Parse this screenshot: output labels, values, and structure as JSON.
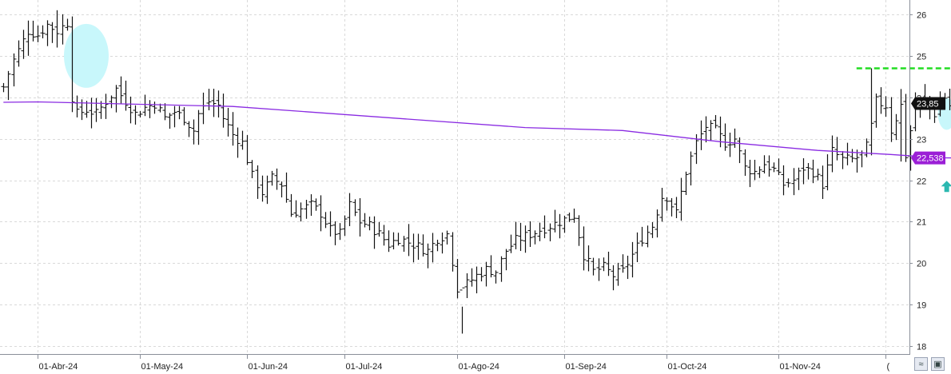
{
  "chart_data": {
    "type": "ohlc",
    "ylim": [
      17.8,
      26.3
    ],
    "y_ticks": [
      "18",
      "19",
      "20",
      "21",
      "22",
      "23",
      "24",
      "25",
      "26"
    ],
    "x_ticks": [
      {
        "label": "01-Abr-24",
        "index": 0
      },
      {
        "label": "01-May-24",
        "index": 21
      },
      {
        "label": "01-Jun-24",
        "index": 43
      },
      {
        "label": "01-Jul-24",
        "index": 63
      },
      {
        "label": "01-Ago-24",
        "index": 86
      },
      {
        "label": "01-Sep-24",
        "index": 108
      },
      {
        "label": "01-Oct-24",
        "index": 129
      },
      {
        "label": "01-Nov-24",
        "index": 152
      },
      {
        "label": "(",
        "index": 174
      }
    ],
    "ohlc_keypoints": [
      [
        -7,
        24.25
      ],
      [
        -5,
        24.9
      ],
      [
        -2,
        25.6
      ],
      [
        0,
        25.5
      ],
      [
        2,
        25.75
      ],
      [
        4,
        25.6
      ],
      [
        6,
        25.8
      ],
      [
        7,
        24.0
      ],
      [
        8,
        23.6
      ],
      [
        10,
        23.7
      ],
      [
        12,
        23.6
      ],
      [
        14,
        23.9
      ],
      [
        16,
        24.2
      ],
      [
        18,
        23.9
      ],
      [
        20,
        23.6
      ],
      [
        22,
        23.75
      ],
      [
        24,
        23.85
      ],
      [
        26,
        23.5
      ],
      [
        28,
        23.65
      ],
      [
        30,
        23.5
      ],
      [
        32,
        23.2
      ],
      [
        33,
        23.6
      ],
      [
        35,
        23.9
      ],
      [
        37,
        23.8
      ],
      [
        38,
        23.5
      ],
      [
        40,
        23.1
      ],
      [
        42,
        22.9
      ],
      [
        44,
        22.1
      ],
      [
        46,
        21.7
      ],
      [
        48,
        22.05
      ],
      [
        50,
        21.9
      ],
      [
        52,
        21.2
      ],
      [
        54,
        21.3
      ],
      [
        56,
        21.4
      ],
      [
        58,
        21.2
      ],
      [
        60,
        20.8
      ],
      [
        62,
        20.7
      ],
      [
        64,
        21.4
      ],
      [
        66,
        21.0
      ],
      [
        68,
        20.9
      ],
      [
        70,
        20.7
      ],
      [
        72,
        20.45
      ],
      [
        74,
        20.6
      ],
      [
        76,
        20.5
      ],
      [
        78,
        20.4
      ],
      [
        80,
        20.3
      ],
      [
        82,
        20.6
      ],
      [
        84,
        20.7
      ],
      [
        86,
        19.4
      ],
      [
        88,
        19.5
      ],
      [
        90,
        19.7
      ],
      [
        92,
        19.85
      ],
      [
        94,
        19.8
      ],
      [
        96,
        20.3
      ],
      [
        98,
        20.55
      ],
      [
        100,
        20.65
      ],
      [
        102,
        20.75
      ],
      [
        104,
        20.85
      ],
      [
        106,
        20.95
      ],
      [
        108,
        21.05
      ],
      [
        110,
        21.15
      ],
      [
        112,
        20.2
      ],
      [
        114,
        19.8
      ],
      [
        116,
        19.9
      ],
      [
        118,
        19.7
      ],
      [
        120,
        19.8
      ],
      [
        122,
        20.2
      ],
      [
        124,
        20.6
      ],
      [
        126,
        20.9
      ],
      [
        128,
        21.6
      ],
      [
        129,
        21.6
      ],
      [
        131,
        21.2
      ],
      [
        133,
        22.2
      ],
      [
        135,
        22.9
      ],
      [
        137,
        23.3
      ],
      [
        139,
        23.2
      ],
      [
        141,
        22.9
      ],
      [
        143,
        23.0
      ],
      [
        145,
        22.3
      ],
      [
        147,
        22.2
      ],
      [
        149,
        22.4
      ],
      [
        151,
        22.25
      ],
      [
        153,
        21.9
      ],
      [
        155,
        22.0
      ],
      [
        157,
        22.3
      ],
      [
        159,
        22.2
      ],
      [
        161,
        21.9
      ],
      [
        163,
        22.7
      ],
      [
        165,
        22.5
      ],
      [
        167,
        22.5
      ],
      [
        169,
        22.6
      ],
      [
        170,
        22.8
      ],
      [
        171,
        23.3
      ],
      [
        172,
        23.9
      ],
      [
        174,
        23.8
      ],
      [
        175,
        23.2
      ],
      [
        177,
        23.8
      ],
      [
        178,
        22.6
      ],
      [
        180,
        23.8
      ],
      [
        182,
        23.95
      ],
      [
        184,
        23.6
      ],
      [
        186,
        24.0
      ],
      [
        187,
        23.8
      ],
      [
        188,
        22.8
      ],
      [
        189,
        23.0
      ],
      [
        190,
        23.5
      ],
      [
        191,
        23.85
      ]
    ],
    "ohlc_overrides": [
      {
        "index": 4,
        "high": 26.1,
        "low": 25.2
      },
      {
        "index": 86,
        "high": 20.1,
        "low": 19.15
      },
      {
        "index": 87,
        "high": 18.95,
        "low": 18.3
      },
      {
        "index": 104,
        "high": 21.15,
        "low": 20.6
      },
      {
        "index": 171,
        "high": 24.7,
        "low": 22.6
      },
      {
        "index": 177,
        "high": 24.2,
        "low": 22.45
      },
      {
        "index": 188,
        "high": 23.1,
        "low": 22.6
      }
    ],
    "moving_average": {
      "points": [
        [
          -7,
          23.88
        ],
        [
          0,
          23.89
        ],
        [
          40,
          23.78
        ],
        [
          100,
          23.27
        ],
        [
          120,
          23.2
        ],
        [
          140,
          22.93
        ],
        [
          160,
          22.72
        ],
        [
          175,
          22.62
        ],
        [
          185,
          22.54
        ],
        [
          191,
          22.538
        ]
      ],
      "color": "#8a2be2"
    },
    "resistance": {
      "value": 24.7,
      "from_index": 168,
      "to_index": 191,
      "color": "#22dd22"
    },
    "highlights": [
      {
        "index": 10,
        "value": 25.0,
        "color": "#c8f7fb"
      },
      {
        "index": 186.5,
        "value": 23.6,
        "color": "#c8f7fb"
      }
    ],
    "arrow": {
      "index": 186.5,
      "value": 21.85,
      "color": "#2bb8b0",
      "direction": "up"
    },
    "last_price": {
      "label": "23,85",
      "value": 23.85,
      "color": "#111111"
    },
    "ma_last": {
      "label": "22,538",
      "value": 22.538,
      "color": "#9b1fd6"
    }
  },
  "toolbar": {
    "buttons": [
      {
        "name": "chart-type-button",
        "icon": "wave-icon",
        "glyph": "≈"
      },
      {
        "name": "save-button",
        "icon": "floppy-icon",
        "glyph": "▣"
      }
    ]
  }
}
